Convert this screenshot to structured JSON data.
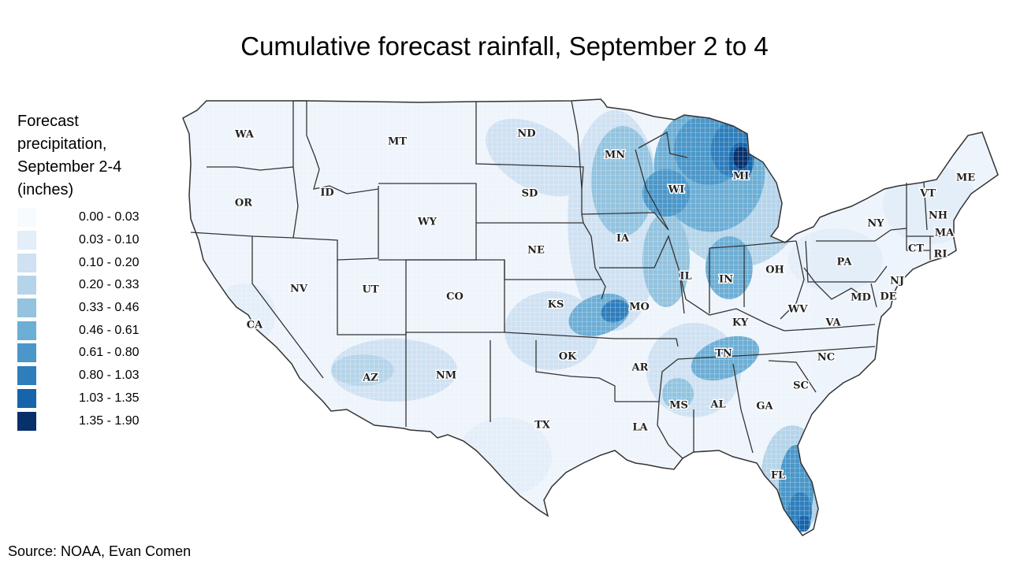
{
  "title": "Cumulative forecast rainfall, September 2 to 4",
  "legend": {
    "title_lines": [
      "Forecast",
      "precipitation,",
      "September 2-4",
      "(inches)"
    ],
    "bins": [
      {
        "label": "0.00 - 0.03",
        "color": "#f7fbff"
      },
      {
        "label": "0.03 - 0.10",
        "color": "#e3eef9"
      },
      {
        "label": "0.10 - 0.20",
        "color": "#cfe1f2"
      },
      {
        "label": "0.20 - 0.33",
        "color": "#b5d4e9"
      },
      {
        "label": "0.33 - 0.46",
        "color": "#93c3df"
      },
      {
        "label": "0.46 - 0.61",
        "color": "#6daed5"
      },
      {
        "label": "0.61 - 0.80",
        "color": "#4b97c9"
      },
      {
        "label": "0.80 - 1.03",
        "color": "#2f7ebc"
      },
      {
        "label": "1.03 - 1.35",
        "color": "#1664aa"
      },
      {
        "label": "1.35 - 1.90",
        "color": "#08306b"
      }
    ]
  },
  "source": "Source: NOAA, Evan Comen",
  "map": {
    "land_color": "#eef4fb",
    "border_color": "#333333",
    "states": [
      {
        "abbr": "WA"
      },
      {
        "abbr": "OR"
      },
      {
        "abbr": "CA"
      },
      {
        "abbr": "ID"
      },
      {
        "abbr": "NV"
      },
      {
        "abbr": "MT"
      },
      {
        "abbr": "WY"
      },
      {
        "abbr": "UT"
      },
      {
        "abbr": "AZ"
      },
      {
        "abbr": "CO"
      },
      {
        "abbr": "NM"
      },
      {
        "abbr": "ND"
      },
      {
        "abbr": "SD"
      },
      {
        "abbr": "NE"
      },
      {
        "abbr": "KS"
      },
      {
        "abbr": "OK"
      },
      {
        "abbr": "TX"
      },
      {
        "abbr": "MN"
      },
      {
        "abbr": "IA"
      },
      {
        "abbr": "MO"
      },
      {
        "abbr": "AR"
      },
      {
        "abbr": "LA"
      },
      {
        "abbr": "WI"
      },
      {
        "abbr": "IL"
      },
      {
        "abbr": "MI"
      },
      {
        "abbr": "IN"
      },
      {
        "abbr": "OH"
      },
      {
        "abbr": "KY"
      },
      {
        "abbr": "TN"
      },
      {
        "abbr": "MS"
      },
      {
        "abbr": "AL"
      },
      {
        "abbr": "GA"
      },
      {
        "abbr": "FL"
      },
      {
        "abbr": "SC"
      },
      {
        "abbr": "NC"
      },
      {
        "abbr": "VA"
      },
      {
        "abbr": "WV"
      },
      {
        "abbr": "MD"
      },
      {
        "abbr": "DE"
      },
      {
        "abbr": "NJ"
      },
      {
        "abbr": "PA"
      },
      {
        "abbr": "NY"
      },
      {
        "abbr": "CT"
      },
      {
        "abbr": "RI"
      },
      {
        "abbr": "MA"
      },
      {
        "abbr": "NH"
      },
      {
        "abbr": "VT"
      },
      {
        "abbr": "ME"
      }
    ]
  }
}
